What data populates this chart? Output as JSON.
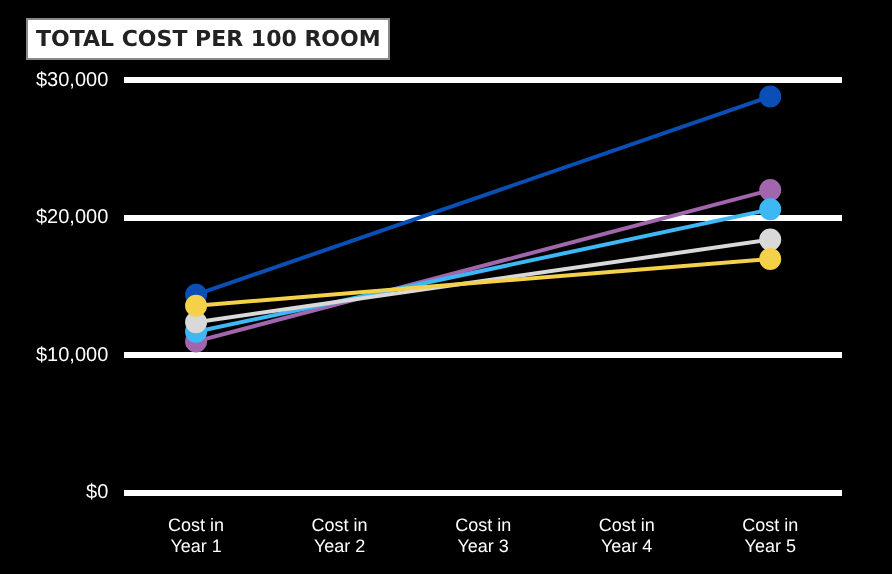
{
  "chart_data": {
    "type": "line",
    "title": "TOTAL COST PER 100 ROOM",
    "categories": [
      "Cost in Year 1",
      "Cost in Year 2",
      "Cost in Year 3",
      "Cost in Year 4",
      "Cost in Year 5"
    ],
    "series": [
      {
        "color": "#0a4fb5",
        "values": [
          14400,
          null,
          null,
          null,
          28800
        ]
      },
      {
        "color": "#a166ab",
        "values": [
          11000,
          null,
          null,
          null,
          22000
        ]
      },
      {
        "color": "#3db8f5",
        "values": [
          11700,
          null,
          null,
          null,
          20600
        ]
      },
      {
        "color": "#d9d9d9",
        "values": [
          12400,
          null,
          null,
          null,
          18400
        ]
      },
      {
        "color": "#f5d04a",
        "values": [
          13600,
          null,
          null,
          null,
          17000
        ]
      }
    ],
    "ylim": [
      0,
      30000
    ],
    "yticks": [
      {
        "value": 0,
        "label": "$0"
      },
      {
        "value": 10000,
        "label": "$10,000"
      },
      {
        "value": 20000,
        "label": "$20,000"
      },
      {
        "value": 30000,
        "label": "$30,000"
      }
    ],
    "grid": "y",
    "legend": false,
    "marker": "circle",
    "line_style": "solid"
  }
}
